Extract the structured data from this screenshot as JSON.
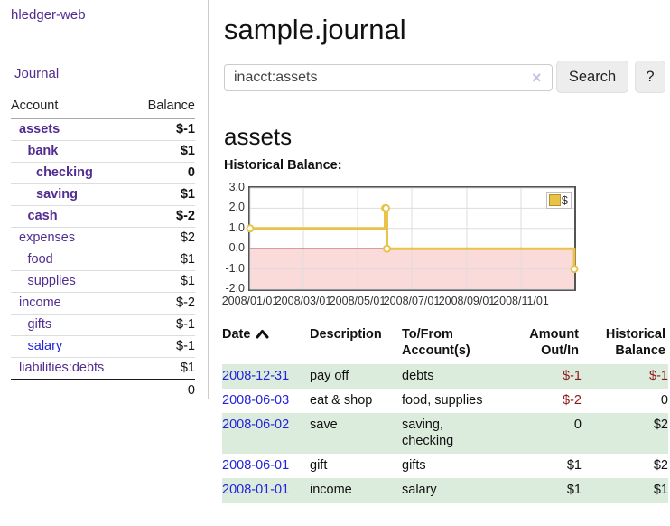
{
  "sidebar": {
    "brand": "hledger-web",
    "nav": {
      "journal": "Journal"
    },
    "accounts_table": {
      "headers": {
        "account": "Account",
        "balance": "Balance"
      },
      "rows": [
        {
          "name": "assets",
          "level": 0,
          "bold": true,
          "balance": "$-1",
          "balance_style": "neg-strong"
        },
        {
          "name": "bank",
          "level": 1,
          "bold": true,
          "balance": "$1",
          "balance_style": "pos"
        },
        {
          "name": "checking",
          "level": 2,
          "bold": true,
          "balance": "0",
          "balance_style": "pos"
        },
        {
          "name": "saving",
          "level": 2,
          "bold": true,
          "balance": "$1",
          "balance_style": "pos"
        },
        {
          "name": "cash",
          "level": 1,
          "bold": true,
          "balance": "$-2",
          "balance_style": "neg-strong"
        },
        {
          "name": "expenses",
          "level": 0,
          "bold": false,
          "balance": "$2",
          "balance_style": "pos"
        },
        {
          "name": "food",
          "level": 1,
          "bold": false,
          "balance": "$1",
          "balance_style": "pos"
        },
        {
          "name": "supplies",
          "level": 1,
          "bold": false,
          "balance": "$1",
          "balance_style": "pos"
        },
        {
          "name": "income",
          "level": 0,
          "bold": false,
          "balance": "$-2",
          "balance_style": "neg-soft"
        },
        {
          "name": "gifts",
          "level": 1,
          "bold": false,
          "balance": "$-1",
          "balance_style": "neg-soft"
        },
        {
          "name": "salary",
          "level": 1,
          "bold": false,
          "link_color": "blue",
          "balance": "$-1",
          "balance_style": "neg-soft"
        },
        {
          "name": "liabilities:debts",
          "level": 0,
          "bold": false,
          "balance": "$1",
          "balance_style": "pos"
        }
      ],
      "total": "0"
    }
  },
  "header": {
    "title": "sample.journal"
  },
  "search": {
    "value": "inacct:assets",
    "clear_icon": "×",
    "button": "Search",
    "help_button": "?"
  },
  "account_page": {
    "title": "assets",
    "chart_label": "Historical Balance:"
  },
  "chart_data": {
    "type": "line",
    "title": "Historical Balance",
    "step": true,
    "series": [
      {
        "name": "$",
        "points": [
          [
            "2008-01-01",
            1
          ],
          [
            "2008-06-01",
            2
          ],
          [
            "2008-06-02",
            2
          ],
          [
            "2008-06-03",
            0
          ],
          [
            "2008-12-31",
            -1
          ]
        ]
      }
    ],
    "ylim": [
      -2,
      3
    ],
    "yticks": [
      {
        "label": "3.0",
        "value": 3
      },
      {
        "label": "2.0",
        "value": 2
      },
      {
        "label": "1.0",
        "value": 1
      },
      {
        "label": "0.0",
        "value": 0
      },
      {
        "label": "-1.0",
        "value": -1
      },
      {
        "label": "-2.0",
        "value": -2
      }
    ],
    "xlim": [
      "2008-01-01",
      "2008-12-31"
    ],
    "xticks": [
      {
        "label": "2008/01/01",
        "date": "2008-01-01"
      },
      {
        "label": "2008/03/01",
        "date": "2008-03-01"
      },
      {
        "label": "2008/05/01",
        "date": "2008-05-01"
      },
      {
        "label": "2008/07/01",
        "date": "2008-07-01"
      },
      {
        "label": "2008/09/01",
        "date": "2008-09-01"
      },
      {
        "label": "2008/11/01",
        "date": "2008-11-01"
      }
    ],
    "grid": true,
    "legend": {
      "label": "$",
      "position": "top-right"
    }
  },
  "register_table": {
    "headers": [
      {
        "lines": [
          "Date"
        ],
        "align": "left",
        "sort": "asc"
      },
      {
        "lines": [
          "Description"
        ],
        "align": "left"
      },
      {
        "lines": [
          "To/From",
          "Account(s)"
        ],
        "align": "left"
      },
      {
        "lines": [
          "Amount",
          "Out/In"
        ],
        "align": "right"
      },
      {
        "lines": [
          "Historical",
          "Balance"
        ],
        "align": "right"
      }
    ],
    "rows": [
      {
        "date": "2008-12-31",
        "description": "pay off",
        "accounts_lines": [
          "debts"
        ],
        "amount": "$-1",
        "amount_neg": true,
        "balance": "$-1",
        "balance_neg": true,
        "shaded": true
      },
      {
        "date": "2008-06-03",
        "description": "eat & shop",
        "accounts_lines": [
          "food, supplies"
        ],
        "amount": "$-2",
        "amount_neg": true,
        "balance": "0",
        "balance_neg": false,
        "shaded": false
      },
      {
        "date": "2008-06-02",
        "description": "save",
        "accounts_lines": [
          "saving,",
          "checking"
        ],
        "amount": "0",
        "amount_neg": false,
        "balance": "$2",
        "balance_neg": false,
        "shaded": true
      },
      {
        "date": "2008-06-01",
        "description": "gift",
        "accounts_lines": [
          "gifts"
        ],
        "amount": "$1",
        "amount_neg": false,
        "balance": "$2",
        "balance_neg": false,
        "shaded": false
      },
      {
        "date": "2008-01-01",
        "description": "income",
        "accounts_lines": [
          "salary"
        ],
        "amount": "$1",
        "amount_neg": false,
        "balance": "$1",
        "balance_neg": false,
        "shaded": true
      }
    ]
  },
  "colors": {
    "link_purple": "#522d90",
    "link_blue": "#2222dd",
    "negative_strong": "#8b1a1a",
    "negative_soft": "#b36a6a",
    "row_green": "#dcecdc",
    "chart_line": "#e9c349",
    "chart_line_border": "#b89124",
    "chart_negative_bg": "#fbdada",
    "chart_zero_line": "#9b0000",
    "chart_grid": "#dddddd",
    "chart_border": "#545454"
  }
}
